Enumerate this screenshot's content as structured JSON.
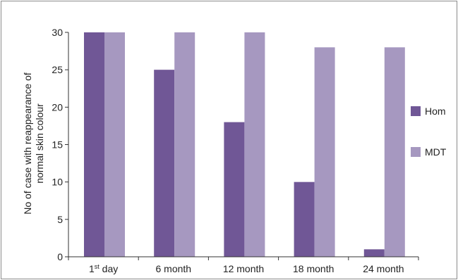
{
  "chart_data": {
    "type": "bar",
    "categories": [
      {
        "base": "1",
        "sup": "st",
        "rest": " day"
      },
      {
        "base": "6 month",
        "sup": "",
        "rest": ""
      },
      {
        "base": "12 month",
        "sup": "",
        "rest": ""
      },
      {
        "base": "18 month",
        "sup": "",
        "rest": ""
      },
      {
        "base": "24 month",
        "sup": "",
        "rest": ""
      }
    ],
    "series": [
      {
        "name": "Hom",
        "color": "#705796",
        "values": [
          30,
          25,
          18,
          10,
          1
        ]
      },
      {
        "name": "MDT",
        "color": "#a698c0",
        "values": [
          30,
          30,
          30,
          28,
          28
        ]
      }
    ],
    "title": "",
    "xlabel": "",
    "ylabel_lines": [
      "No of case with reappearance of",
      "normal skin colour"
    ],
    "ylim": [
      0,
      30
    ],
    "yticks": [
      0,
      5,
      10,
      15,
      20,
      25,
      30
    ],
    "grid": false,
    "legend_position": "right"
  }
}
